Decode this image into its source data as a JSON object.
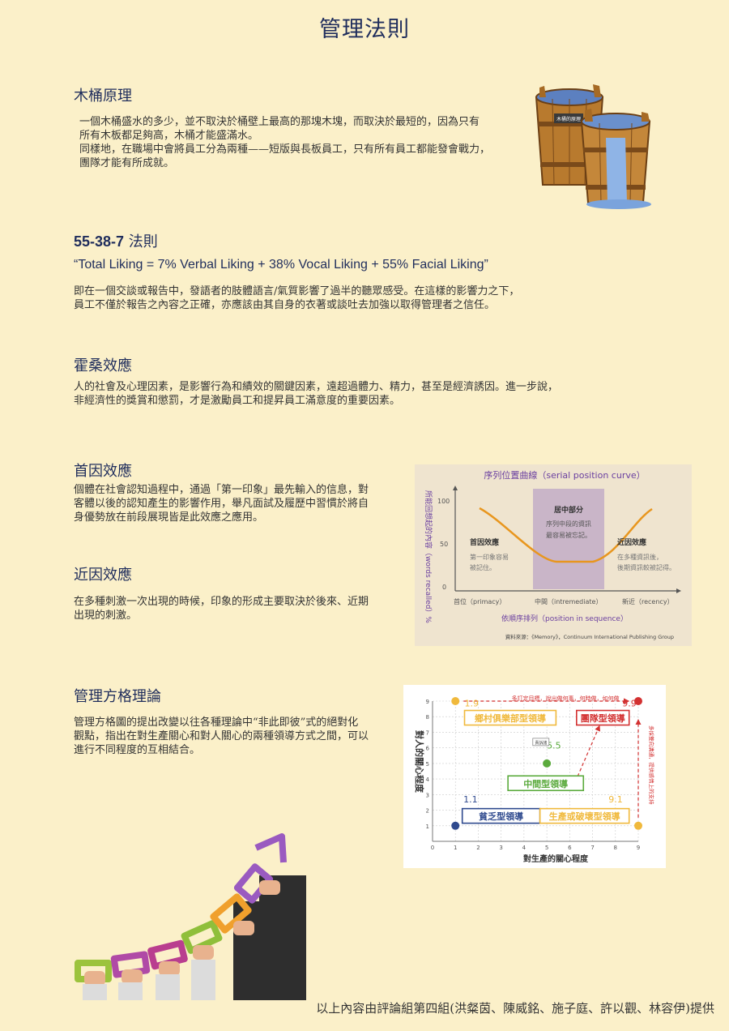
{
  "page": {
    "title": "管理法則",
    "footer": "以上內容由評論組第四組(洪粲茵、陳威銘、施子庭、許以觀、林容伊)提供"
  },
  "sections": {
    "barrel": {
      "heading": "木桶原理",
      "body": "一個木桶盛水的多少，並不取決於桶壁上最高的那塊木塊，而取決於最短的，因為只有\n所有木板都足夠高，木桶才能盛滿水。\n同樣地，在職場中會將員工分為兩種——短版與長板員工，只有所有員工都能發會戰力，\n團隊才能有所成就。",
      "image_label": "木桶的原理"
    },
    "rule55": {
      "heading_num": "55-38-7",
      "heading_text": " 法則",
      "formula": "“Total Liking = 7% Verbal Liking + 38% Vocal Liking + 55% Facial Liking”",
      "body": "即在一個交談或報告中，發語者的肢體語言/氣質影響了過半的聽眾感受。在這樣的影響力之下，\n員工不僅於報告之內容之正確，亦應該由其自身的衣著或談吐去加強以取得管理者之信任。"
    },
    "hawthorne": {
      "heading": "霍桑效應",
      "body": "人的社會及心理因素，是影響行為和績效的關鍵因素，遠超過體力、精力，甚至是經濟誘因。進一步說，\n非經濟性的獎賞和懲罰，才是激勵員工和提昇員工滿意度的重要因素。"
    },
    "primacy": {
      "heading": "首因效應",
      "body": "個體在社會認知過程中，通過「第一印象」最先輸入的信息，對\n客體以後的認知產生的影響作用，舉凡面試及履歷中習慣於將自\n身優勢放在前段展現皆是此效應之應用。"
    },
    "recency": {
      "heading": "近因效應",
      "body": "在多種刺激一次出現的時候，印象的形成主要取決於後來、近期\n出現的刺激。"
    },
    "grid_theory": {
      "heading": "管理方格理論",
      "body": "管理方格圖的提出改變以往各種理論中“非此即彼”式的絕對化\n觀點，指出在對生產關心和對人關心的兩種領導方式之間，可以\n進行不同程度的互相結合。"
    }
  },
  "serial_position": {
    "title": "序列位置曲線（serial position curve）",
    "ylabel": "所能回想起的內容（words recalled）%",
    "xlabel": "依順序排列（position in sequence）",
    "yticks": [
      "100",
      "50",
      "0"
    ],
    "xticks": [
      "首位（primacy）",
      "中間（intremediate）",
      "新近（recency）"
    ],
    "middle_title": "居中部分",
    "middle_text": [
      "序列中段的資訊",
      "最容易被忘記。"
    ],
    "primacy_title": "首因效應",
    "primacy_text": [
      "第一印象容易",
      "被記住。"
    ],
    "recency_title": "近因效應",
    "recency_text": [
      "在多種資訊後，",
      "後期資訊較被記得。"
    ],
    "source": "資料來源：《Memory》，Continuum International Publishing Group",
    "colors": {
      "curve": "#e8961e",
      "title": "#6a3fa0",
      "band": "#c9b5c8"
    }
  },
  "managerial_grid": {
    "ylabel": "對人的關心程度",
    "xlabel": "對生產的關心程度",
    "xticks": [
      "0",
      "1",
      "2",
      "3",
      "4",
      "5",
      "6",
      "7",
      "8",
      "9"
    ],
    "yticks": [
      "1",
      "2",
      "3",
      "4",
      "5",
      "6",
      "7",
      "8",
      "9"
    ],
    "top_note": "多訂定目標，說出做何事，何時做，如何做",
    "right_note": "多採雙向溝通，提供感情上的支持",
    "small_tag": "責訴諸",
    "styles": [
      {
        "label": "鄉村俱樂部型領導",
        "score": "1.9",
        "color": "#f0b93c"
      },
      {
        "label": "團隊型領導",
        "score": "9.9",
        "color": "#d33131"
      },
      {
        "label": "中間型領導",
        "score": "5.5",
        "color": "#5aaa3c"
      },
      {
        "label": "貧乏型領導",
        "score": "1.1",
        "color": "#2f4a8e"
      },
      {
        "label": "生產或破壞型領導",
        "score": "9.1",
        "color": "#f0b93c"
      }
    ]
  }
}
